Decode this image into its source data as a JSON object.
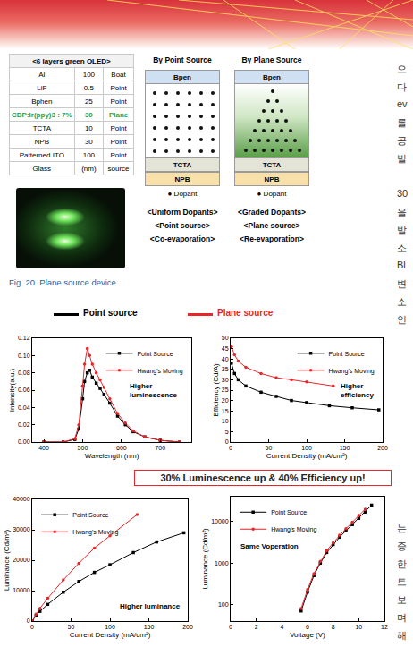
{
  "table": {
    "title": "<6 layers green OLED>",
    "rows": [
      {
        "cells": [
          "Al",
          "100",
          "Boat"
        ]
      },
      {
        "cells": [
          "LiF",
          "0.5",
          "Point"
        ]
      },
      {
        "cells": [
          "Bphen",
          "25",
          "Point"
        ]
      },
      {
        "cells": [
          "CBP:Ir(ppy)3 : 7%",
          "30",
          "Plane"
        ],
        "color": "#2e9e3e"
      },
      {
        "cells": [
          "TCTA",
          "10",
          "Point"
        ]
      },
      {
        "cells": [
          "NPB",
          "30",
          "Point"
        ]
      },
      {
        "cells": [
          "Patterned ITO",
          "100",
          "Point"
        ]
      },
      {
        "cells": [
          "Glass",
          "(nm)",
          "source"
        ]
      }
    ]
  },
  "diagrams": {
    "dopant_legend": "● Dopant",
    "panels": [
      {
        "title": "By Point Source",
        "layers": [
          "Bpen",
          "TCTA",
          "NPB"
        ],
        "dopant": "uniform",
        "captions": [
          "<Uniform Dopants>",
          "<Point source>",
          "<Co-evaporation>"
        ]
      },
      {
        "title": "By Plane Source",
        "layers": [
          "Bpen",
          "TCTA",
          "NPB"
        ],
        "dopant": "graded",
        "captions": [
          "<Graded Dopants>",
          "<Plane source>",
          "<Re-evaporation>"
        ]
      }
    ]
  },
  "caption": "Fig. 20. Plane source device.",
  "side_text": [
    [
      "으",
      "다",
      "ev",
      "를",
      "공",
      "발"
    ],
    [
      "30",
      "을",
      "발",
      "소",
      "Bl",
      "변",
      "소",
      "인"
    ],
    [
      "는",
      "증",
      "한",
      "트",
      "보",
      "며",
      "해"
    ]
  ],
  "figure_legend": [
    {
      "name": "Point source",
      "color": "#000000"
    },
    {
      "name": "Plane source",
      "color": "#e8262a"
    }
  ],
  "banner": "30% Luminescence up & 40% Efficiency up!",
  "chart_data": [
    {
      "type": "line",
      "x_label": "Wavelength (nm)",
      "y_label": "Intensity(a.u.)",
      "xlim": [
        370,
        780
      ],
      "xticks": [
        400,
        500,
        600,
        700
      ],
      "ylim": [
        0,
        0.12
      ],
      "yticks": [
        {
          "value": 0,
          "label": "0.00"
        },
        0.02,
        0.04,
        0.06,
        0.08,
        {
          "value": 0.1,
          "label": "0.10"
        },
        0.12
      ],
      "grid": false,
      "legend": "top right",
      "annotation": "Higher luminescence",
      "series": [
        {
          "name": "Point Source",
          "color": "#000000",
          "marker": "square",
          "x": [
            400,
            450,
            480,
            490,
            500,
            505,
            512,
            518,
            525,
            535,
            545,
            555,
            570,
            590,
            610,
            630,
            660,
            700,
            750
          ],
          "values": [
            0,
            0,
            0.003,
            0.015,
            0.05,
            0.07,
            0.08,
            0.083,
            0.075,
            0.068,
            0.062,
            0.055,
            0.045,
            0.03,
            0.02,
            0.012,
            0.006,
            0.002,
            0
          ]
        },
        {
          "name": "Hwang's Moving",
          "color": "#e8262a",
          "marker": "circle",
          "x": [
            400,
            450,
            480,
            490,
            500,
            505,
            512,
            518,
            525,
            535,
            545,
            555,
            570,
            590,
            610,
            630,
            660,
            700,
            750
          ],
          "values": [
            0,
            0,
            0.004,
            0.02,
            0.065,
            0.09,
            0.108,
            0.1,
            0.09,
            0.08,
            0.072,
            0.063,
            0.05,
            0.033,
            0.022,
            0.013,
            0.006,
            0.002,
            0
          ]
        }
      ]
    },
    {
      "type": "line",
      "x_label": "Current Density (mA/cm²)",
      "y_label": "Efficiency (Cd/A)",
      "xlim": [
        0,
        200
      ],
      "xticks": [
        0,
        50,
        100,
        150,
        200
      ],
      "ylim": [
        0,
        50
      ],
      "yticks": [
        0,
        5,
        10,
        15,
        20,
        25,
        30,
        35,
        40,
        45,
        50
      ],
      "grid": false,
      "legend": "top right",
      "annotation": "Higher efficiency",
      "series": [
        {
          "name": "Point Source",
          "color": "#000000",
          "marker": "square",
          "x": [
            1,
            5,
            10,
            20,
            40,
            60,
            80,
            100,
            130,
            160,
            195
          ],
          "values": [
            38,
            33,
            30,
            27,
            24,
            22,
            20,
            19,
            17.5,
            16.5,
            15.5
          ]
        },
        {
          "name": "Hwang's Moving",
          "color": "#e8262a",
          "marker": "circle",
          "x": [
            1,
            5,
            10,
            20,
            40,
            60,
            80,
            100,
            135
          ],
          "values": [
            46,
            42,
            39,
            36,
            33,
            31,
            30,
            29,
            27
          ]
        }
      ]
    },
    {
      "type": "line",
      "x_label": "Current Density (mA/cm²)",
      "y_label": "Luminance (Cd/m²)",
      "xlim": [
        0,
        200
      ],
      "xticks": [
        0,
        50,
        100,
        150,
        200
      ],
      "ylim": [
        0,
        40000
      ],
      "yticks": [
        0,
        10000,
        20000,
        30000,
        40000
      ],
      "grid": false,
      "legend": "top left",
      "annotation": "Higher luminance",
      "series": [
        {
          "name": "Point Source",
          "color": "#000000",
          "marker": "square",
          "x": [
            0,
            5,
            10,
            20,
            40,
            60,
            80,
            100,
            130,
            160,
            195
          ],
          "values": [
            0,
            1800,
            3200,
            5500,
            9500,
            13000,
            16000,
            18500,
            22500,
            26000,
            29000
          ]
        },
        {
          "name": "Hwang's Moving",
          "color": "#e8262a",
          "marker": "circle",
          "x": [
            0,
            5,
            10,
            20,
            40,
            60,
            80,
            100,
            135
          ],
          "values": [
            0,
            2300,
            4200,
            7500,
            13500,
            19000,
            24000,
            28000,
            35000
          ]
        }
      ]
    },
    {
      "type": "line",
      "x_label": "Voltage (V)",
      "y_label": "Luminance (Cd/m²)",
      "log": "y",
      "xlim": [
        0,
        12
      ],
      "xticks": [
        0,
        2,
        4,
        6,
        8,
        10,
        12
      ],
      "ylim": [
        40,
        40000
      ],
      "yticks": [
        100,
        1000,
        10000
      ],
      "grid": false,
      "legend": "top left",
      "annotation": "Same Voperation",
      "series": [
        {
          "name": "Point Source",
          "color": "#000000",
          "marker": "square",
          "x": [
            5.5,
            6,
            6.5,
            7,
            7.5,
            8,
            8.5,
            9,
            9.5,
            10,
            10.5,
            11
          ],
          "values": [
            70,
            200,
            500,
            1000,
            1800,
            2800,
            4200,
            6000,
            8500,
            12000,
            17000,
            25000
          ]
        },
        {
          "name": "Hwang's Moving",
          "color": "#e8262a",
          "marker": "circle",
          "x": [
            5.5,
            6,
            6.5,
            7,
            7.5,
            8,
            8.5,
            9,
            9.5,
            10,
            10.5
          ],
          "values": [
            80,
            230,
            560,
            1100,
            2000,
            3100,
            4700,
            6800,
            9700,
            14000,
            20000
          ]
        }
      ]
    }
  ]
}
